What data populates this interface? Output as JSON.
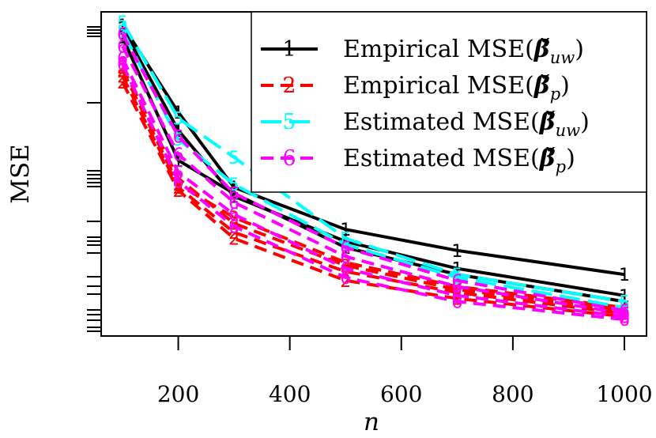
{
  "chart_data": {
    "type": "line",
    "xlabel": "n",
    "ylabel": "MSE",
    "x": [
      100,
      200,
      300,
      500,
      700,
      1000
    ],
    "xlim": [
      100,
      1000
    ],
    "ylim": [
      0,
      1
    ],
    "xticks": [
      "200",
      "400",
      "600",
      "800",
      "1000"
    ],
    "legend_position": "top-right",
    "legend": [
      {
        "symbol": "1",
        "label": "Empirical MSE(β̌uw)",
        "label_main": "Empirical MSE(",
        "label_beta": "β̌",
        "label_sub": "uw",
        "label_close": ")",
        "color": "#000000",
        "dash": "solid"
      },
      {
        "symbol": "2",
        "label": "Empirical MSE(β̌p)",
        "label_main": "Empirical MSE(",
        "label_beta": "β̌",
        "label_sub": "p",
        "label_close": ")",
        "color": "#ff0000",
        "dash": "dashed"
      },
      {
        "symbol": "5",
        "label": "Estimated MSE(β̌uw)",
        "label_main": "Estimated MSE(",
        "label_beta": "β̌",
        "label_sub": "uw",
        "label_close": ")",
        "color": "#00ffff",
        "dash": "longdash"
      },
      {
        "symbol": "6",
        "label": "Estimated MSE(β̌p)",
        "label_main": "Estimated MSE(",
        "label_beta": "β̌",
        "label_sub": "p",
        "label_close": ")",
        "color": "#ff00ff",
        "dash": "dashed"
      }
    ],
    "series": [
      {
        "symbol": "1",
        "color": "#000000",
        "dash": "solid",
        "values": [
          0.99,
          0.7,
          0.45,
          0.31,
          0.24,
          0.16
        ]
      },
      {
        "symbol": "1",
        "color": "#000000",
        "dash": "solid",
        "values": [
          0.98,
          0.64,
          0.42,
          0.27,
          0.18,
          0.09
        ]
      },
      {
        "symbol": "1",
        "color": "#000000",
        "dash": "solid",
        "values": [
          0.95,
          0.54,
          0.43,
          0.25,
          0.16,
          0.07
        ]
      },
      {
        "symbol": "2",
        "color": "#ff0000",
        "dash": "dashed",
        "values": [
          0.84,
          0.46,
          0.35,
          0.2,
          0.12,
          0.05
        ]
      },
      {
        "symbol": "2",
        "color": "#ff0000",
        "dash": "dashed",
        "values": [
          0.82,
          0.45,
          0.3,
          0.17,
          0.1,
          0.03
        ]
      },
      {
        "symbol": "2",
        "color": "#ff0000",
        "dash": "dashed",
        "values": [
          0.8,
          0.44,
          0.28,
          0.14,
          0.08,
          0.02
        ]
      },
      {
        "symbol": "2",
        "color": "#ff0000",
        "dash": "dashed",
        "values": [
          0.85,
          0.48,
          0.33,
          0.19,
          0.11,
          0.04
        ]
      },
      {
        "symbol": "5",
        "color": "#00ffff",
        "dash": "longdash",
        "values": [
          1.0,
          0.68,
          0.55,
          0.28,
          0.16,
          0.07
        ]
      },
      {
        "symbol": "5",
        "color": "#00ffff",
        "dash": "longdash",
        "values": [
          0.97,
          0.61,
          0.46,
          0.26,
          0.15,
          0.05
        ]
      },
      {
        "symbol": "6",
        "color": "#ff00ff",
        "dash": "dashed",
        "values": [
          0.96,
          0.62,
          0.43,
          0.25,
          0.14,
          0.04
        ]
      },
      {
        "symbol": "6",
        "color": "#ff00ff",
        "dash": "dashed",
        "values": [
          0.92,
          0.56,
          0.4,
          0.22,
          0.12,
          0.03
        ]
      },
      {
        "symbol": "6",
        "color": "#ff00ff",
        "dash": "dashed",
        "values": [
          0.88,
          0.5,
          0.36,
          0.18,
          0.09,
          0.02
        ]
      },
      {
        "symbol": "6",
        "color": "#ff00ff",
        "dash": "dashed",
        "values": [
          0.86,
          0.47,
          0.32,
          0.15,
          0.07,
          0.01
        ]
      }
    ]
  }
}
